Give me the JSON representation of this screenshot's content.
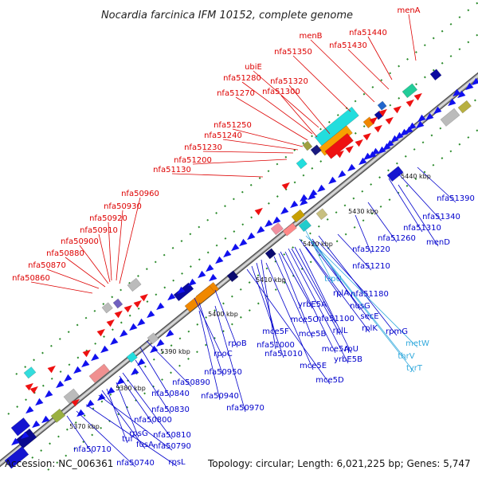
{
  "title": "Nocardia farcinica IFM 10152, complete genome",
  "footer": {
    "accession": "Accession: NC_006361",
    "topology": "Topology: circular; Length: 6,021,225 bp; Genes: 5,747"
  },
  "colors": {
    "forward_label": "#dd0000",
    "reverse_label": "#0000cc",
    "rna_label": "#33aadd",
    "backbone": "#888888",
    "gene_forward": "#ee1111",
    "gene_reverse": "#1111ee"
  },
  "ticks": [
    "5370 kbp",
    "5380 kbp",
    "5390 kbp",
    "5400 kbp",
    "5410 kbp",
    "5420 kbp",
    "5430 kbp",
    "5440 kbp"
  ],
  "forward_labels": [
    "menA",
    "nfa51440",
    "menB",
    "nfa51430",
    "nfa51350",
    "ubiE",
    "nfa51280",
    "nfa51320",
    "nfa51270",
    "nfa51300",
    "nfa51250",
    "nfa51240",
    "nfa51230",
    "nfa51200",
    "nfa51130",
    "nfa50960",
    "nfa50930",
    "nfa50920",
    "nfa50910",
    "nfa50900",
    "nfa50880",
    "nfa50870",
    "nfa50860"
  ],
  "reverse_labels": [
    "nfa51390",
    "nfa51340",
    "nfa51310",
    "menD",
    "nfa51260",
    "nfa51220",
    "nfa51210",
    "nfa51180",
    "nusG",
    "secE",
    "rplK",
    "rpmG",
    "rplA",
    "nfa51100",
    "rplL",
    "rpU",
    "yrbE5B",
    "mce5A",
    "mce5B",
    "mce5C",
    "yrbE5A",
    "nfa51000",
    "mce5F",
    "nfa51010",
    "mce5E",
    "mce5D",
    "rpoB",
    "rpoC",
    "nfa50950",
    "nfa50890",
    "nfa50840",
    "nfa50940",
    "nfa50970",
    "nfa50830",
    "nfa50800",
    "nfa50810",
    "rpsG",
    "tuf",
    "fusA",
    "nfa50790",
    "nfa50710",
    "nfa50740",
    "rpsL"
  ],
  "rna_labels": [
    "trpU",
    "metW",
    "thrV",
    "tyrT"
  ]
}
